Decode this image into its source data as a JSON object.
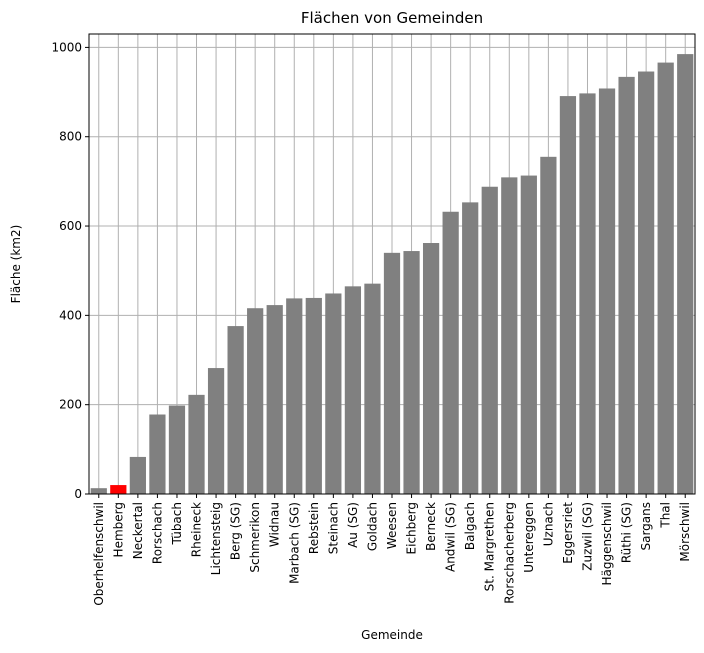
{
  "chart_data": {
    "type": "bar",
    "title": "Flächen von Gemeinden",
    "xlabel": "Gemeinde",
    "ylabel": "Fläche (km2)",
    "ylim": [
      0,
      1030
    ],
    "yticks": [
      0,
      200,
      400,
      600,
      800,
      1000
    ],
    "grid": true,
    "bar_color": "#808080",
    "highlight_color": "#ff0000",
    "highlight_category": "Hemberg",
    "categories": [
      "Oberhelfenschwil",
      "Hemberg",
      "Neckertal",
      "Rorschach",
      "Tübach",
      "Rheineck",
      "Lichtensteig",
      "Berg (SG)",
      "Schmerikon",
      "Widnau",
      "Marbach (SG)",
      "Rebstein",
      "Steinach",
      "Au (SG)",
      "Goldach",
      "Weesen",
      "Eichberg",
      "Berneck",
      "Andwil (SG)",
      "Balgach",
      "St. Margrethen",
      "Rorschacherberg",
      "Untereggen",
      "Uznach",
      "Eggersriet",
      "Zuzwil (SG)",
      "Häggenschwil",
      "Rüthi (SG)",
      "Sargans",
      "Thal",
      "Mörschwil"
    ],
    "values": [
      13,
      20,
      83,
      178,
      198,
      222,
      282,
      376,
      416,
      423,
      438,
      439,
      449,
      465,
      471,
      540,
      544,
      562,
      632,
      653,
      688,
      709,
      713,
      755,
      891,
      897,
      908,
      934,
      946,
      966,
      985
    ]
  }
}
